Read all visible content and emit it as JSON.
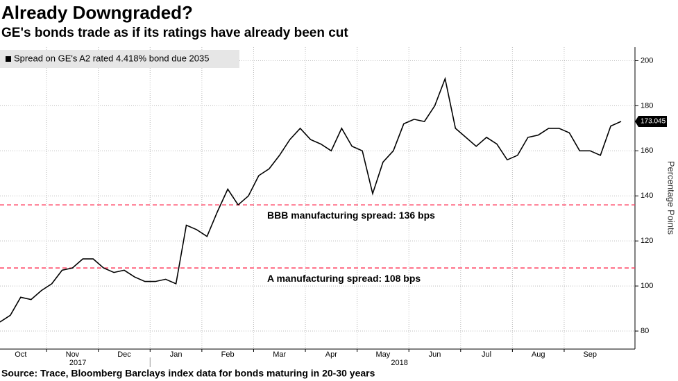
{
  "chart_data": {
    "type": "line",
    "title": "Already Downgraded?",
    "subtitle": "GE's bonds trade as if its ratings have already been cut",
    "source": "Source: Trace, Bloomberg Barclays index data for bonds maturing in 20-30 years",
    "y_label": "Percentage Points",
    "years": [
      "2017",
      "2018"
    ],
    "categories": [
      null,
      null,
      "Oct",
      null,
      null,
      null,
      null,
      "Nov",
      null,
      null,
      null,
      null,
      "Dec",
      null,
      null,
      null,
      null,
      "Jan",
      null,
      null,
      null,
      null,
      "Feb",
      null,
      null,
      null,
      null,
      "Mar",
      null,
      null,
      null,
      null,
      "Apr",
      null,
      null,
      null,
      null,
      "May",
      null,
      null,
      null,
      null,
      "Jun",
      null,
      null,
      null,
      null,
      "Jul",
      null,
      null,
      null,
      null,
      "Aug",
      null,
      null,
      null,
      null,
      "Sep",
      null,
      null,
      null
    ],
    "series": [
      {
        "name": "Spread on GE's A2 rated 4.418% bond due 2035",
        "color": "#000000",
        "values": [
          84,
          87,
          95,
          94,
          98,
          101,
          107,
          108,
          112,
          112,
          108,
          106,
          107,
          104,
          102,
          102,
          103,
          101,
          127,
          125,
          122,
          133,
          143,
          136,
          140,
          149,
          152,
          158,
          165,
          170,
          165,
          163,
          160,
          170,
          162,
          160,
          141,
          155,
          160,
          172,
          174,
          173,
          180,
          192,
          170,
          166,
          162,
          166,
          163,
          156,
          158,
          166,
          167,
          170,
          170,
          168,
          160,
          160,
          158,
          171,
          173.045
        ]
      }
    ],
    "reference_lines": [
      {
        "value": 136,
        "label": "BBB manufacturing spread: 136 bps"
      },
      {
        "value": 108,
        "label": "A manufacturing spread: 108 bps"
      }
    ],
    "reference_color": "#ff3b5c",
    "ylim": [
      72,
      206
    ],
    "yticks": [
      80,
      100,
      120,
      140,
      160,
      180,
      200
    ],
    "grid": true
  }
}
